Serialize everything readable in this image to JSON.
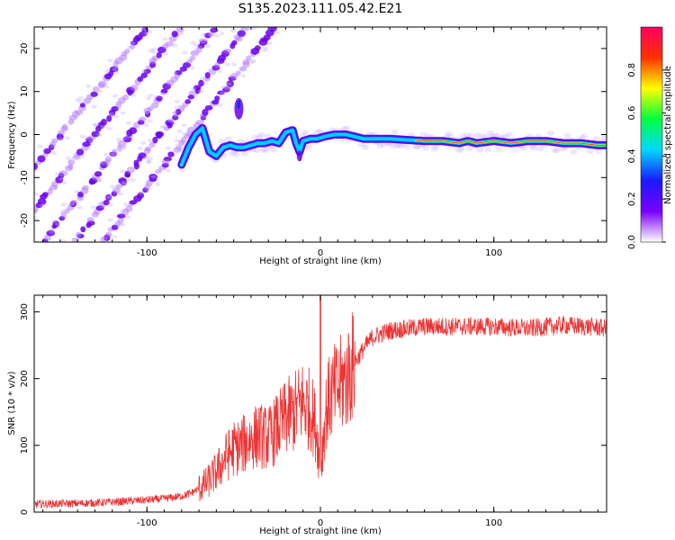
{
  "title": "S135.2023.111.05.42.E21",
  "chart_data": [
    {
      "type": "heatmap",
      "title": "",
      "xlabel": "Height of straight line (km)",
      "ylabel": "Frequency (Hz)",
      "xlim": [
        -165,
        165
      ],
      "ylim": [
        -25,
        25
      ],
      "xticks": [
        -100,
        0,
        100
      ],
      "yticks": [
        -20,
        -10,
        0,
        10,
        20
      ],
      "colorbar": {
        "label": "Normalized spectral amplitude",
        "range": [
          0,
          1
        ],
        "ticks": [
          "0.0",
          "0.2",
          "0.4",
          "0.6",
          "0.8"
        ],
        "colors": [
          "#ffffff",
          "#7a00ff",
          "#1a1aff",
          "#00d8ff",
          "#00ff40",
          "#ffff00",
          "#ff3000",
          "#ff0060"
        ]
      },
      "ridge_curve": {
        "x": [
          -80,
          -76,
          -72,
          -68,
          -64,
          -60,
          -56,
          -52,
          -48,
          -44,
          -40,
          -36,
          -32,
          -28,
          -24,
          -20,
          -16,
          -14,
          -12,
          -10,
          -6,
          -2,
          2,
          8,
          15,
          25,
          40,
          60,
          70,
          80,
          85,
          90,
          100,
          110,
          120,
          130,
          140,
          150,
          160,
          165
        ],
        "y": [
          -7,
          -3,
          0,
          1.5,
          -4,
          -5,
          -3,
          -2.5,
          -3,
          -3,
          -2.5,
          -2,
          -2,
          -1.5,
          -2,
          0.5,
          1,
          -2,
          -4,
          -1.5,
          -1,
          -1,
          -0.5,
          0,
          0,
          -1,
          -1,
          -1.5,
          -1.5,
          -2,
          -1.5,
          -2,
          -1.5,
          -2,
          -1.5,
          -1.5,
          -2,
          -2,
          -2.5,
          -2.5
        ]
      },
      "diagonal_streaks": {
        "description_free": true,
        "slope_hz_per_km": 0.5,
        "x_intercepts_at_0hz": [
          -150,
          -130,
          -110,
          -92,
          -76
        ]
      }
    },
    {
      "type": "line",
      "title": "",
      "xlabel": "Height of straight line (km)",
      "ylabel": "SNR (10 * v/v)",
      "xlim": [
        -165,
        165
      ],
      "ylim": [
        0,
        325
      ],
      "xticks": [
        -100,
        0,
        100
      ],
      "yticks": [
        0,
        100,
        200,
        300
      ],
      "series": [
        {
          "name": "SNR",
          "color": "#ee3333",
          "x": [
            -165,
            -140,
            -120,
            -100,
            -90,
            -80,
            -75,
            -70,
            -65,
            -60,
            -55,
            -50,
            -45,
            -40,
            -35,
            -30,
            -25,
            -20,
            -15,
            -10,
            -5,
            -2,
            0,
            3,
            6,
            10,
            15,
            20,
            25,
            30,
            40,
            50,
            60,
            80,
            100,
            120,
            140,
            160,
            165
          ],
          "values": [
            12,
            13,
            15,
            18,
            20,
            24,
            28,
            35,
            45,
            60,
            80,
            95,
            100,
            110,
            115,
            110,
            125,
            140,
            150,
            165,
            150,
            120,
            60,
            150,
            175,
            185,
            200,
            225,
            245,
            262,
            272,
            275,
            278,
            278,
            278,
            275,
            280,
            277,
            275
          ],
          "spike": {
            "x": 0,
            "value": 325
          }
        }
      ]
    }
  ]
}
